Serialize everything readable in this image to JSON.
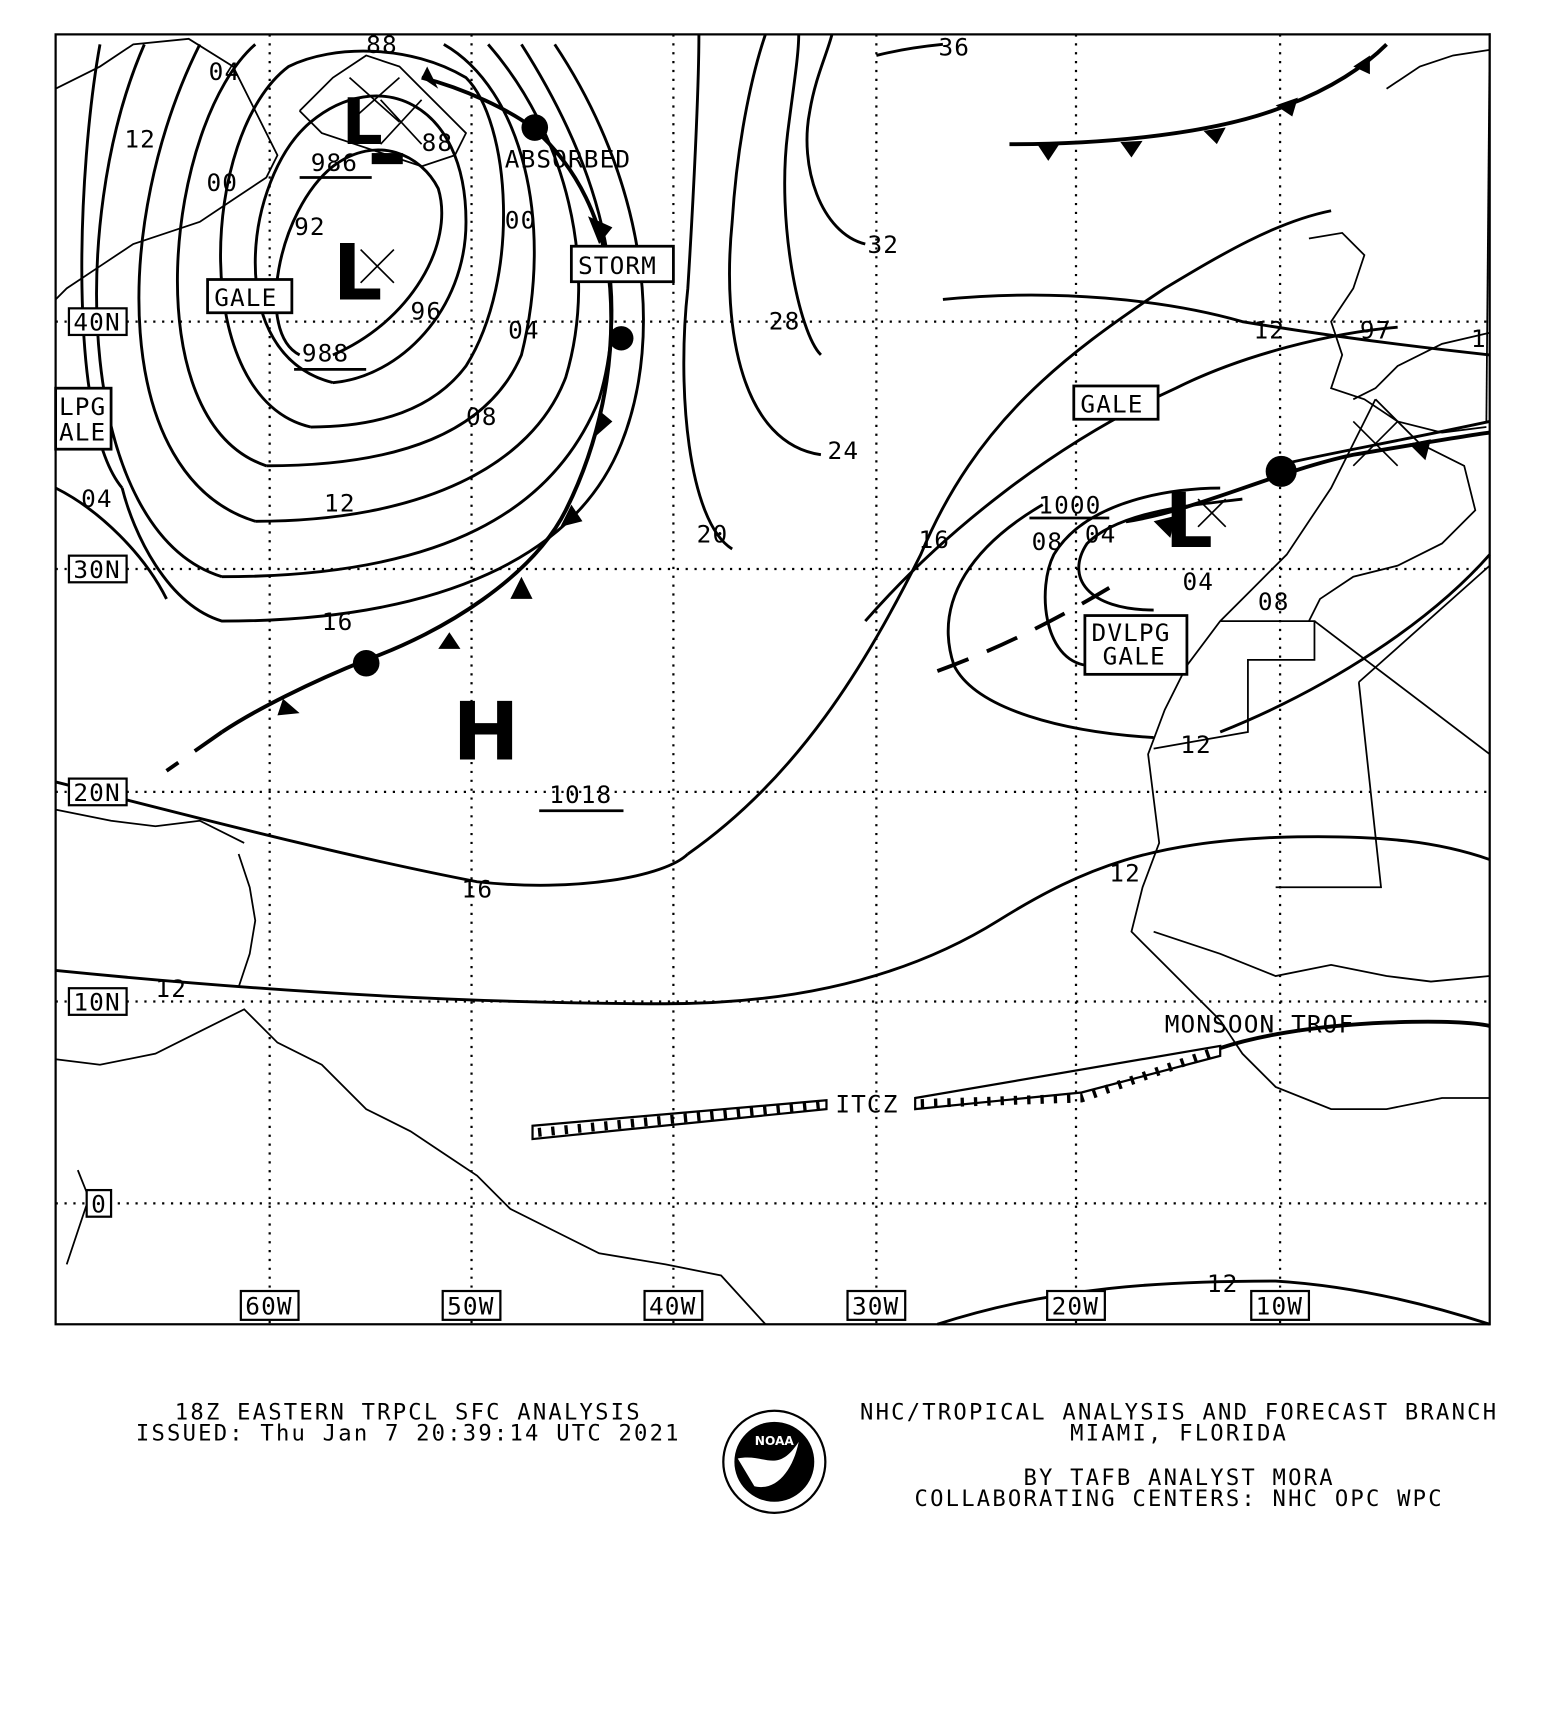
{
  "map": {
    "lat_labels": [
      "40N",
      "30N",
      "20N",
      "10N",
      "0"
    ],
    "lon_labels": [
      "60W",
      "50W",
      "40W",
      "30W",
      "20W",
      "10W"
    ],
    "isobar_labels": [
      "04",
      "12",
      "00",
      "88",
      "986",
      "88",
      "92",
      "00",
      "96",
      "04",
      "988",
      "08",
      "12",
      "04",
      "16",
      "16",
      "1018",
      "12",
      "20",
      "24",
      "28",
      "32",
      "36",
      "16",
      "12",
      "97",
      "1",
      "1000",
      "08",
      "04",
      "04",
      "08",
      "12",
      "12",
      "12"
    ],
    "pressure_centers": [
      {
        "type": "L",
        "value": "986"
      },
      {
        "type": "L",
        "value": "988"
      },
      {
        "type": "H",
        "value": "1018"
      },
      {
        "type": "L",
        "value": "1000"
      }
    ],
    "warnings": [
      "GALE",
      "STORM",
      "GALE",
      "DVLPG",
      "GALE",
      "LPG",
      "ALE"
    ],
    "annotations": {
      "absorbed": "ABSORBED",
      "itcz": "ITCZ",
      "monsoon": "MONSOON TROF"
    }
  },
  "footer": {
    "title": "18Z EASTERN TRPCL SFC ANALYSIS",
    "issued": "ISSUED: Thu Jan 7 20:39:14 UTC 2021",
    "org": "NHC/TROPICAL ANALYSIS AND FORECAST BRANCH",
    "location": "MIAMI,  FLORIDA",
    "analyst": "BY TAFB ANALYST  MORA",
    "centers": "COLLABORATING CENTERS: NHC OPC WPC",
    "logo_text": "NOAA"
  }
}
